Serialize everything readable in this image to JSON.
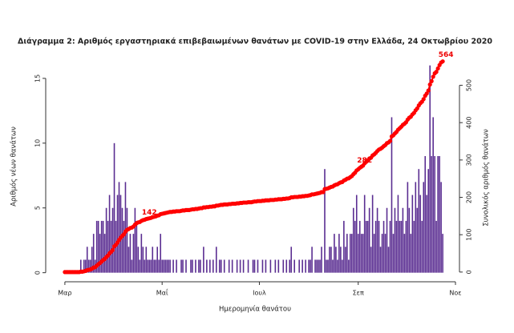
{
  "chart_data": {
    "type": "bar",
    "title": "Διάγραμμα 2: Αριθμός εργαστηριακά επιβεβαιωμένων θανάτων με COVID-19 στην Ελλάδα, 24 Οκτωβρίου 2020",
    "xlabel": "Ημερομηνία θανάτου",
    "ylabel": "Αριθμός νέων θανάτων",
    "y2label": "Συνολικός αριθμός θανάτων",
    "xlim": [
      -8,
      246
    ],
    "xticks": [
      {
        "value": 0,
        "label": "Μαρ"
      },
      {
        "value": 61,
        "label": "Μαΐ"
      },
      {
        "value": 122,
        "label": "Ιουλ"
      },
      {
        "value": 184,
        "label": "Σεπ"
      },
      {
        "value": 245,
        "label": "Νοε"
      }
    ],
    "ylim": [
      -0.7,
      16.6
    ],
    "yticks": [
      0,
      5,
      10,
      15
    ],
    "y2lim": [
      -26,
      574
    ],
    "y2ticks": [
      0,
      100,
      200,
      300,
      400,
      500
    ],
    "x": [
      0,
      1,
      2,
      3,
      4,
      5,
      6,
      7,
      8,
      9,
      10,
      11,
      12,
      13,
      14,
      15,
      16,
      17,
      18,
      19,
      20,
      21,
      22,
      23,
      24,
      25,
      26,
      27,
      28,
      29,
      30,
      31,
      32,
      33,
      34,
      35,
      36,
      37,
      38,
      39,
      40,
      41,
      42,
      43,
      44,
      45,
      46,
      47,
      48,
      49,
      50,
      51,
      52,
      53,
      54,
      55,
      56,
      57,
      58,
      59,
      60,
      61,
      62,
      63,
      64,
      65,
      66,
      67,
      68,
      69,
      70,
      71,
      72,
      73,
      74,
      75,
      76,
      77,
      78,
      79,
      80,
      81,
      82,
      83,
      84,
      85,
      86,
      87,
      88,
      89,
      90,
      91,
      92,
      93,
      94,
      95,
      96,
      97,
      98,
      99,
      100,
      101,
      102,
      103,
      104,
      105,
      106,
      107,
      108,
      109,
      110,
      111,
      112,
      113,
      114,
      115,
      116,
      117,
      118,
      119,
      120,
      121,
      122,
      123,
      124,
      125,
      126,
      127,
      128,
      129,
      130,
      131,
      132,
      133,
      134,
      135,
      136,
      137,
      138,
      139,
      140,
      141,
      142,
      143,
      144,
      145,
      146,
      147,
      148,
      149,
      150,
      151,
      152,
      153,
      154,
      155,
      156,
      157,
      158,
      159,
      160,
      161,
      162,
      163,
      164,
      165,
      166,
      167,
      168,
      169,
      170,
      171,
      172,
      173,
      174,
      175,
      176,
      177,
      178,
      179,
      180,
      181,
      182,
      183,
      184,
      185,
      186,
      187,
      188,
      189,
      190,
      191,
      192,
      193,
      194,
      195,
      196,
      197,
      198,
      199,
      200,
      201,
      202,
      203,
      204,
      205,
      206,
      207,
      208,
      209,
      210,
      211,
      212,
      213,
      214,
      215,
      216,
      217,
      218,
      219,
      220,
      221,
      222,
      223,
      224,
      225,
      226,
      227,
      228,
      229,
      230,
      231,
      232,
      233,
      234,
      235,
      236,
      237
    ],
    "series": [
      {
        "type": "bar",
        "color": "#5a2d91",
        "values": [
          0,
          0,
          0,
          0,
          0,
          0,
          0,
          0,
          0,
          0,
          1,
          0,
          1,
          1,
          2,
          1,
          1,
          2,
          3,
          1,
          4,
          4,
          3,
          4,
          4,
          3,
          5,
          4,
          6,
          4,
          5,
          10,
          4,
          6,
          7,
          6,
          5,
          4,
          7,
          5,
          2,
          3,
          1,
          3,
          5,
          4,
          2,
          1,
          3,
          2,
          1,
          2,
          1,
          1,
          1,
          2,
          1,
          1,
          2,
          1,
          3,
          1,
          1,
          1,
          1,
          1,
          1,
          0,
          1,
          0,
          1,
          0,
          0,
          1,
          1,
          0,
          1,
          0,
          0,
          1,
          1,
          0,
          1,
          0,
          1,
          1,
          0,
          2,
          0,
          1,
          0,
          1,
          0,
          1,
          0,
          2,
          0,
          1,
          1,
          0,
          1,
          0,
          0,
          1,
          0,
          1,
          0,
          0,
          1,
          0,
          1,
          0,
          1,
          0,
          0,
          1,
          0,
          0,
          1,
          1,
          0,
          1,
          0,
          0,
          1,
          0,
          1,
          0,
          0,
          1,
          0,
          0,
          1,
          0,
          1,
          0,
          0,
          1,
          0,
          1,
          0,
          1,
          2,
          0,
          1,
          0,
          0,
          1,
          0,
          1,
          0,
          1,
          0,
          1,
          1,
          2,
          0,
          1,
          1,
          1,
          1,
          2,
          0,
          8,
          1,
          1,
          2,
          2,
          1,
          3,
          2,
          1,
          3,
          2,
          1,
          4,
          2,
          3,
          1,
          3,
          3,
          5,
          4,
          6,
          3,
          4,
          3,
          3,
          6,
          4,
          4,
          5,
          2,
          6,
          3,
          4,
          5,
          4,
          2,
          3,
          4,
          3,
          5,
          2,
          4,
          12,
          3,
          5,
          4,
          6,
          4,
          4,
          5,
          3,
          4,
          7,
          5,
          3,
          6,
          4,
          7,
          5,
          8,
          6,
          4,
          7,
          9,
          6,
          8,
          16,
          9,
          12,
          9,
          4,
          9,
          9,
          7,
          3
        ]
      },
      {
        "type": "line",
        "axis": "y2",
        "color": "#ff0000",
        "values": [
          0,
          0,
          0,
          0,
          0,
          0,
          0,
          0,
          0,
          0,
          1,
          1,
          2,
          3,
          5,
          6,
          7,
          9,
          12,
          13,
          17,
          21,
          24,
          28,
          32,
          35,
          40,
          44,
          50,
          54,
          59,
          69,
          73,
          79,
          86,
          92,
          97,
          101,
          108,
          113,
          115,
          118,
          119,
          122,
          127,
          131,
          133,
          134,
          137,
          139,
          140,
          142,
          143,
          144,
          145,
          147,
          148,
          149,
          151,
          152,
          155,
          156,
          157,
          158,
          159,
          160,
          161,
          161,
          162,
          162,
          163,
          163,
          163,
          164,
          165,
          165,
          166,
          166,
          166,
          167,
          168,
          168,
          169,
          169,
          170,
          171,
          171,
          173,
          173,
          174,
          174,
          175,
          175,
          176,
          176,
          178,
          178,
          179,
          180,
          180,
          181,
          181,
          181,
          182,
          182,
          183,
          183,
          183,
          184,
          184,
          185,
          185,
          186,
          186,
          186,
          187,
          187,
          187,
          188,
          189,
          189,
          190,
          190,
          190,
          191,
          191,
          192,
          192,
          192,
          193,
          193,
          193,
          194,
          194,
          195,
          195,
          195,
          196,
          196,
          197,
          197,
          198,
          200,
          200,
          201,
          201,
          201,
          202,
          202,
          203,
          203,
          204,
          204,
          205,
          206,
          208,
          208,
          209,
          210,
          211,
          212,
          214,
          214,
          222,
          223,
          224,
          226,
          228,
          229,
          232,
          234,
          235,
          238,
          240,
          241,
          245,
          247,
          250,
          251,
          254,
          257,
          262,
          266,
          272,
          275,
          279,
          282,
          285,
          291,
          295,
          299,
          304,
          306,
          312,
          315,
          319,
          324,
          328,
          330,
          333,
          337,
          340,
          345,
          347,
          351,
          363,
          366,
          371,
          375,
          381,
          385,
          389,
          394,
          397,
          401,
          408,
          413,
          416,
          422,
          426,
          433,
          438,
          446,
          452,
          456,
          463,
          472,
          478,
          486,
          502,
          511,
          523,
          532,
          536,
          545,
          554,
          561,
          564
        ]
      }
    ],
    "annotations": [
      142,
      282,
      564
    ]
  }
}
